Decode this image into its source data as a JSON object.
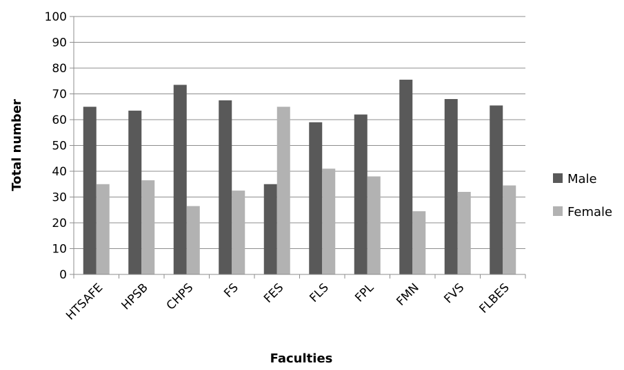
{
  "chart_data": {
    "type": "bar",
    "title": "",
    "xlabel": "Faculties",
    "ylabel": "Total number",
    "ylim": [
      0,
      100
    ],
    "yticks": [
      0,
      10,
      20,
      30,
      40,
      50,
      60,
      70,
      80,
      90,
      100
    ],
    "grid": "horizontal",
    "legend_position": "right",
    "categories": [
      "HTSAFE",
      "HPSB",
      "CHPS",
      "FS",
      "FES",
      "FLS",
      "FPL",
      "FMN",
      "FVS",
      "FLBES"
    ],
    "series": [
      {
        "name": "Male",
        "color": "#595959",
        "values": [
          65,
          63.5,
          73.5,
          67.5,
          35,
          59,
          62,
          75.5,
          68,
          65.5
        ]
      },
      {
        "name": "Female",
        "color": "#b2b2b2",
        "values": [
          35,
          36.5,
          26.5,
          32.5,
          65,
          41,
          38,
          24.5,
          32,
          34.5
        ]
      }
    ]
  }
}
